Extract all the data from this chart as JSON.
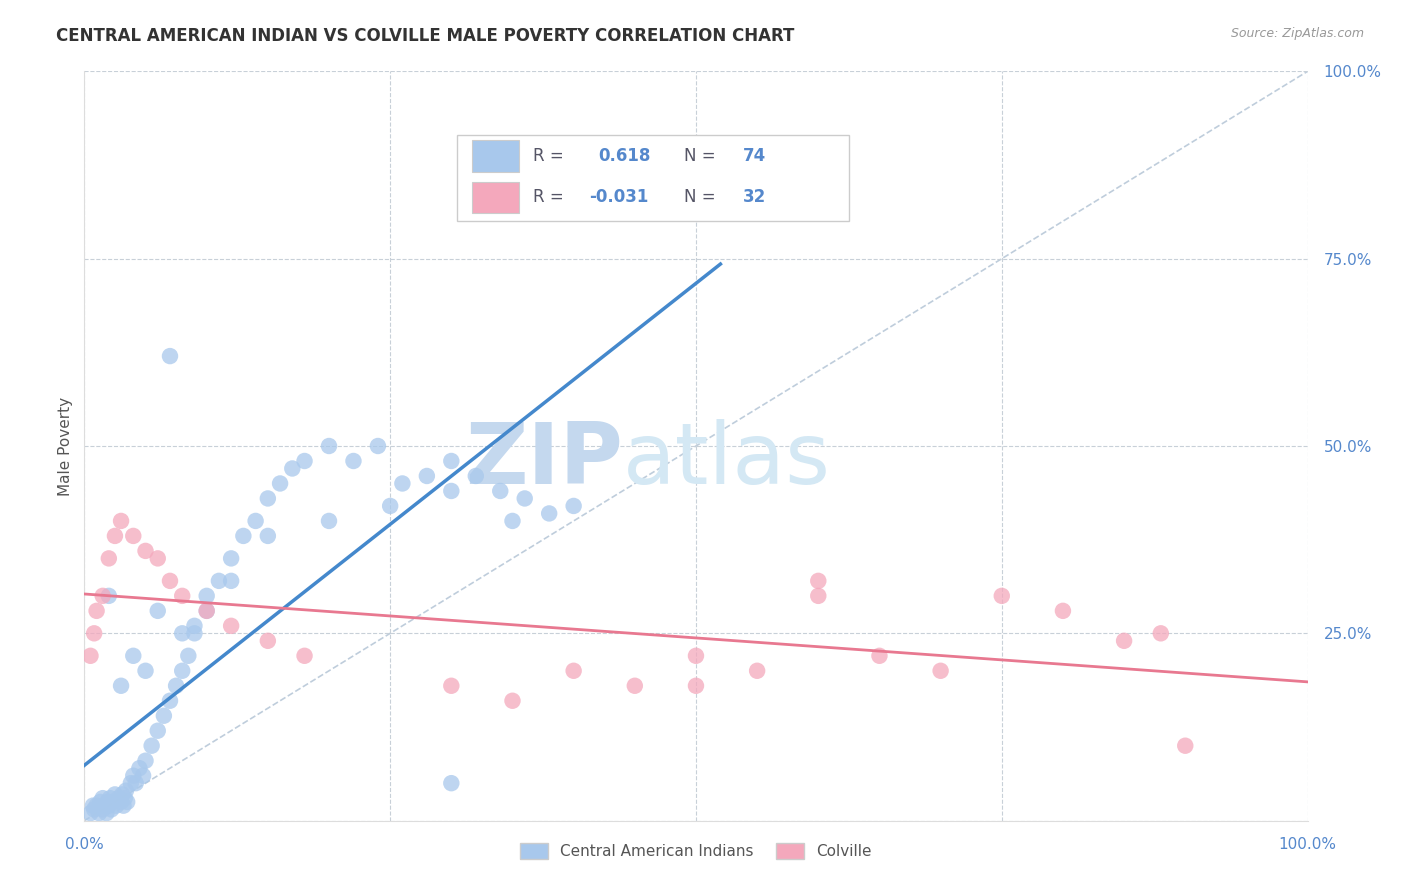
{
  "title": "CENTRAL AMERICAN INDIAN VS COLVILLE MALE POVERTY CORRELATION CHART",
  "source": "Source: ZipAtlas.com",
  "ylabel": "Male Poverty",
  "xlim": [
    0,
    1
  ],
  "ylim": [
    0,
    1
  ],
  "xticks": [
    0,
    0.25,
    0.5,
    0.75,
    1.0
  ],
  "yticks": [
    0,
    0.25,
    0.5,
    0.75,
    1.0
  ],
  "xticklabels": [
    "0.0%",
    "",
    "",
    "",
    "100.0%"
  ],
  "yticklabels": [
    "",
    "25.0%",
    "50.0%",
    "75.0%",
    "100.0%"
  ],
  "blue_R": 0.618,
  "blue_N": 74,
  "pink_R": -0.031,
  "pink_N": 32,
  "blue_color": "#A8C8EC",
  "pink_color": "#F4A8BC",
  "blue_line_color": "#4488CC",
  "pink_line_color": "#E87890",
  "diagonal_color": "#B8C8D8",
  "grid_color": "#C8D0D8",
  "background_color": "#FFFFFF",
  "tick_color": "#5588CC",
  "text_color": "#333333",
  "source_color": "#999999",
  "legend_box_edge": "#CCCCCC",
  "watermark_zip_color": "#C8DCF0",
  "watermark_atlas_color": "#D0E4F4",
  "legend_blue_label": "Central American Indians",
  "legend_pink_label": "Colville",
  "blue_scatter_x": [
    0.005,
    0.007,
    0.008,
    0.01,
    0.012,
    0.013,
    0.015,
    0.015,
    0.016,
    0.018,
    0.019,
    0.02,
    0.021,
    0.022,
    0.023,
    0.025,
    0.026,
    0.028,
    0.03,
    0.031,
    0.032,
    0.033,
    0.034,
    0.035,
    0.038,
    0.04,
    0.042,
    0.045,
    0.048,
    0.05,
    0.055,
    0.06,
    0.065,
    0.07,
    0.075,
    0.08,
    0.085,
    0.09,
    0.1,
    0.11,
    0.12,
    0.13,
    0.14,
    0.15,
    0.16,
    0.17,
    0.18,
    0.2,
    0.22,
    0.24,
    0.26,
    0.28,
    0.3,
    0.32,
    0.34,
    0.36,
    0.38,
    0.4,
    0.15,
    0.2,
    0.25,
    0.3,
    0.35,
    0.1,
    0.12,
    0.08,
    0.06,
    0.04,
    0.09,
    0.03,
    0.05,
    0.02,
    0.3,
    0.07
  ],
  "blue_scatter_y": [
    0.01,
    0.02,
    0.015,
    0.02,
    0.01,
    0.025,
    0.015,
    0.03,
    0.02,
    0.01,
    0.025,
    0.02,
    0.03,
    0.015,
    0.025,
    0.035,
    0.02,
    0.03,
    0.025,
    0.035,
    0.02,
    0.03,
    0.04,
    0.025,
    0.05,
    0.06,
    0.05,
    0.07,
    0.06,
    0.08,
    0.1,
    0.12,
    0.14,
    0.16,
    0.18,
    0.2,
    0.22,
    0.25,
    0.28,
    0.32,
    0.35,
    0.38,
    0.4,
    0.43,
    0.45,
    0.47,
    0.48,
    0.5,
    0.48,
    0.5,
    0.45,
    0.46,
    0.48,
    0.46,
    0.44,
    0.43,
    0.41,
    0.42,
    0.38,
    0.4,
    0.42,
    0.44,
    0.4,
    0.3,
    0.32,
    0.25,
    0.28,
    0.22,
    0.26,
    0.18,
    0.2,
    0.3,
    0.05,
    0.62
  ],
  "pink_scatter_x": [
    0.005,
    0.008,
    0.01,
    0.015,
    0.02,
    0.025,
    0.03,
    0.04,
    0.05,
    0.06,
    0.07,
    0.08,
    0.1,
    0.12,
    0.15,
    0.18,
    0.3,
    0.35,
    0.4,
    0.45,
    0.5,
    0.55,
    0.6,
    0.65,
    0.7,
    0.75,
    0.8,
    0.85,
    0.88,
    0.9,
    0.6,
    0.5
  ],
  "pink_scatter_y": [
    0.22,
    0.25,
    0.28,
    0.3,
    0.35,
    0.38,
    0.4,
    0.38,
    0.36,
    0.35,
    0.32,
    0.3,
    0.28,
    0.26,
    0.24,
    0.22,
    0.18,
    0.16,
    0.2,
    0.18,
    0.22,
    0.2,
    0.3,
    0.22,
    0.2,
    0.3,
    0.28,
    0.24,
    0.25,
    0.1,
    0.32,
    0.18
  ]
}
